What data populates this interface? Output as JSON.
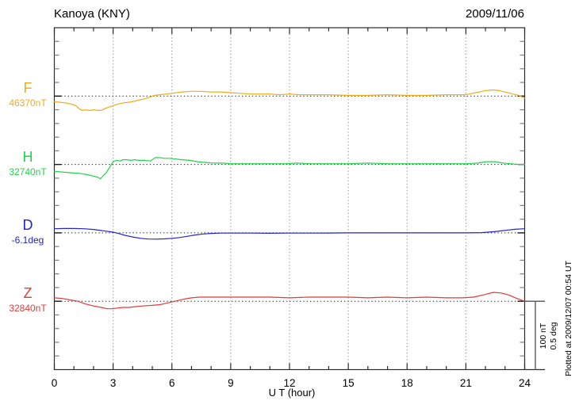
{
  "header": {
    "title": "Kanoya (KNY)",
    "date": "2009/11/06"
  },
  "axis": {
    "xlabel": "U T (hour)"
  },
  "annotations": {
    "scale_nT": "100 nT",
    "scale_deg": "0.5 deg",
    "plotted_at": "Plotted at 2009/12/07 00:54 UT"
  },
  "chart_data": {
    "type": "line",
    "title": "Kanoya (KNY)",
    "date": "2009/11/06",
    "xlabel": "U T (hour)",
    "x_range": [
      0,
      24
    ],
    "x_major_ticks": [
      0,
      3,
      6,
      9,
      12,
      15,
      18,
      21,
      24
    ],
    "x_minor_tick_step_hours": 1,
    "grid": "vertical dotted gridlines every 3 hours; dotted horizontal baseline per channel",
    "scale": {
      "nT_per_division": 100,
      "deg_per_division": 0.5,
      "ticks_per_division": 5
    },
    "legend_position": "left margin channel labels",
    "series": [
      {
        "name": "F",
        "unit": "nT",
        "color": "#F0AC18",
        "baseline_label": "46370nT",
        "baseline_value": 46370,
        "points": [
          [
            0,
            -8
          ],
          [
            0.3,
            -9
          ],
          [
            0.6,
            -10
          ],
          [
            0.9,
            -12
          ],
          [
            1.1,
            -14
          ],
          [
            1.25,
            -18
          ],
          [
            1.4,
            -21
          ],
          [
            1.6,
            -20
          ],
          [
            1.8,
            -21
          ],
          [
            2.0,
            -20
          ],
          [
            2.2,
            -21
          ],
          [
            2.4,
            -21
          ],
          [
            2.6,
            -18
          ],
          [
            2.8,
            -16
          ],
          [
            3.0,
            -14
          ],
          [
            3.2,
            -12
          ],
          [
            3.5,
            -10
          ],
          [
            3.8,
            -9
          ],
          [
            4.0,
            -8
          ],
          [
            4.3,
            -6
          ],
          [
            4.6,
            -4
          ],
          [
            4.9,
            -1
          ],
          [
            5.1,
            1
          ],
          [
            5.4,
            2
          ],
          [
            5.7,
            3
          ],
          [
            6.0,
            4
          ],
          [
            6.5,
            6
          ],
          [
            7.0,
            7
          ],
          [
            7.5,
            7
          ],
          [
            8.0,
            6
          ],
          [
            8.5,
            6
          ],
          [
            9.0,
            5
          ],
          [
            9.5,
            4
          ],
          [
            10,
            3
          ],
          [
            10.5,
            3
          ],
          [
            11,
            3
          ],
          [
            11.5,
            2
          ],
          [
            12,
            3
          ],
          [
            12.5,
            2
          ],
          [
            13,
            2
          ],
          [
            13.5,
            2
          ],
          [
            14,
            2
          ],
          [
            15,
            1
          ],
          [
            16,
            1
          ],
          [
            17,
            2
          ],
          [
            18,
            1
          ],
          [
            19,
            1
          ],
          [
            20,
            2
          ],
          [
            21,
            2
          ],
          [
            21.5,
            5
          ],
          [
            22,
            8
          ],
          [
            22.4,
            9
          ],
          [
            22.7,
            8
          ],
          [
            23,
            6
          ],
          [
            23.4,
            3
          ],
          [
            23.7,
            1
          ],
          [
            24,
            -3
          ]
        ]
      },
      {
        "name": "H",
        "unit": "nT",
        "color": "#1FD34A",
        "baseline_label": "32740nT",
        "baseline_value": 32740,
        "points": [
          [
            0,
            -10
          ],
          [
            0.4,
            -11
          ],
          [
            0.8,
            -12
          ],
          [
            1.3,
            -13
          ],
          [
            1.7,
            -15
          ],
          [
            2.0,
            -17
          ],
          [
            2.25,
            -19
          ],
          [
            2.35,
            -21
          ],
          [
            2.5,
            -16
          ],
          [
            2.65,
            -12
          ],
          [
            2.8,
            -5
          ],
          [
            2.95,
            2
          ],
          [
            3.05,
            5
          ],
          [
            3.2,
            6
          ],
          [
            3.35,
            5
          ],
          [
            3.5,
            7
          ],
          [
            3.7,
            7
          ],
          [
            3.9,
            6
          ],
          [
            4.1,
            7
          ],
          [
            4.3,
            6
          ],
          [
            4.6,
            6
          ],
          [
            4.9,
            5
          ],
          [
            5.05,
            8
          ],
          [
            5.15,
            10
          ],
          [
            5.4,
            10
          ],
          [
            5.6,
            9
          ],
          [
            5.9,
            9
          ],
          [
            6.2,
            8
          ],
          [
            6.5,
            7
          ],
          [
            6.9,
            6
          ],
          [
            7.3,
            4
          ],
          [
            7.7,
            3
          ],
          [
            8.1,
            2
          ],
          [
            8.6,
            2
          ],
          [
            9.1,
            1
          ],
          [
            9.6,
            1
          ],
          [
            10.2,
            1
          ],
          [
            11,
            1
          ],
          [
            11.8,
            1
          ],
          [
            12.4,
            2
          ],
          [
            13,
            1
          ],
          [
            14,
            1
          ],
          [
            15,
            1
          ],
          [
            16,
            2
          ],
          [
            17,
            1
          ],
          [
            18,
            1
          ],
          [
            19,
            1
          ],
          [
            20,
            1
          ],
          [
            21,
            1
          ],
          [
            21.6,
            2
          ],
          [
            22,
            4
          ],
          [
            22.5,
            4
          ],
          [
            22.9,
            2
          ],
          [
            23.3,
            1
          ],
          [
            23.7,
            0
          ],
          [
            24,
            0
          ]
        ]
      },
      {
        "name": "D",
        "unit": "deg",
        "color": "#2424CE",
        "baseline_label": "-6.1deg",
        "baseline_value": -6.1,
        "points": [
          [
            0,
            0.03
          ],
          [
            0.5,
            0.032
          ],
          [
            1.0,
            0.032
          ],
          [
            1.5,
            0.03
          ],
          [
            2.0,
            0.025
          ],
          [
            2.5,
            0.015
          ],
          [
            3.0,
            0.005
          ],
          [
            3.3,
            -0.005
          ],
          [
            3.6,
            -0.018
          ],
          [
            4.0,
            -0.03
          ],
          [
            4.4,
            -0.04
          ],
          [
            4.8,
            -0.045
          ],
          [
            5.2,
            -0.046
          ],
          [
            5.6,
            -0.044
          ],
          [
            6.0,
            -0.04
          ],
          [
            6.4,
            -0.034
          ],
          [
            6.8,
            -0.025
          ],
          [
            7.2,
            -0.015
          ],
          [
            7.6,
            -0.008
          ],
          [
            8.0,
            -0.004
          ],
          [
            8.5,
            -0.002
          ],
          [
            9,
            -0.002
          ],
          [
            10,
            -0.002
          ],
          [
            11,
            -0.003
          ],
          [
            12,
            -0.002
          ],
          [
            13,
            -0.002
          ],
          [
            14,
            -0.001
          ],
          [
            15,
            0
          ],
          [
            16,
            0
          ],
          [
            17,
            0
          ],
          [
            18,
            0
          ],
          [
            19,
            0
          ],
          [
            20,
            0
          ],
          [
            21,
            0
          ],
          [
            21.8,
            0.002
          ],
          [
            22.4,
            0.008
          ],
          [
            23,
            0.018
          ],
          [
            23.5,
            0.026
          ],
          [
            24,
            0.03
          ]
        ]
      },
      {
        "name": "Z",
        "unit": "nT",
        "color": "#E23B3B",
        "baseline_label": "32840nT",
        "baseline_value": 32840,
        "points": [
          [
            0,
            5
          ],
          [
            0.4,
            4
          ],
          [
            0.8,
            2
          ],
          [
            1.2,
            0
          ],
          [
            1.6,
            -4
          ],
          [
            2.0,
            -7
          ],
          [
            2.4,
            -9
          ],
          [
            2.7,
            -11
          ],
          [
            3.0,
            -11
          ],
          [
            3.2,
            -10
          ],
          [
            3.5,
            -9
          ],
          [
            3.8,
            -9
          ],
          [
            4.1,
            -8
          ],
          [
            4.5,
            -7
          ],
          [
            5.0,
            -6
          ],
          [
            5.4,
            -5
          ],
          [
            5.7,
            -3
          ],
          [
            6.0,
            -1
          ],
          [
            6.3,
            1
          ],
          [
            6.6,
            3
          ],
          [
            7.0,
            5
          ],
          [
            7.4,
            6
          ],
          [
            7.8,
            6
          ],
          [
            8.2,
            6
          ],
          [
            9,
            6
          ],
          [
            10,
            6
          ],
          [
            11,
            6
          ],
          [
            12,
            5
          ],
          [
            13,
            6
          ],
          [
            14,
            6
          ],
          [
            15,
            6
          ],
          [
            16,
            5
          ],
          [
            17,
            6
          ],
          [
            18,
            5
          ],
          [
            19,
            6
          ],
          [
            20,
            5
          ],
          [
            20.8,
            5
          ],
          [
            21.4,
            6
          ],
          [
            22.0,
            10
          ],
          [
            22.4,
            13
          ],
          [
            22.8,
            12
          ],
          [
            23.2,
            9
          ],
          [
            23.6,
            4
          ],
          [
            24,
            0
          ]
        ]
      }
    ]
  }
}
